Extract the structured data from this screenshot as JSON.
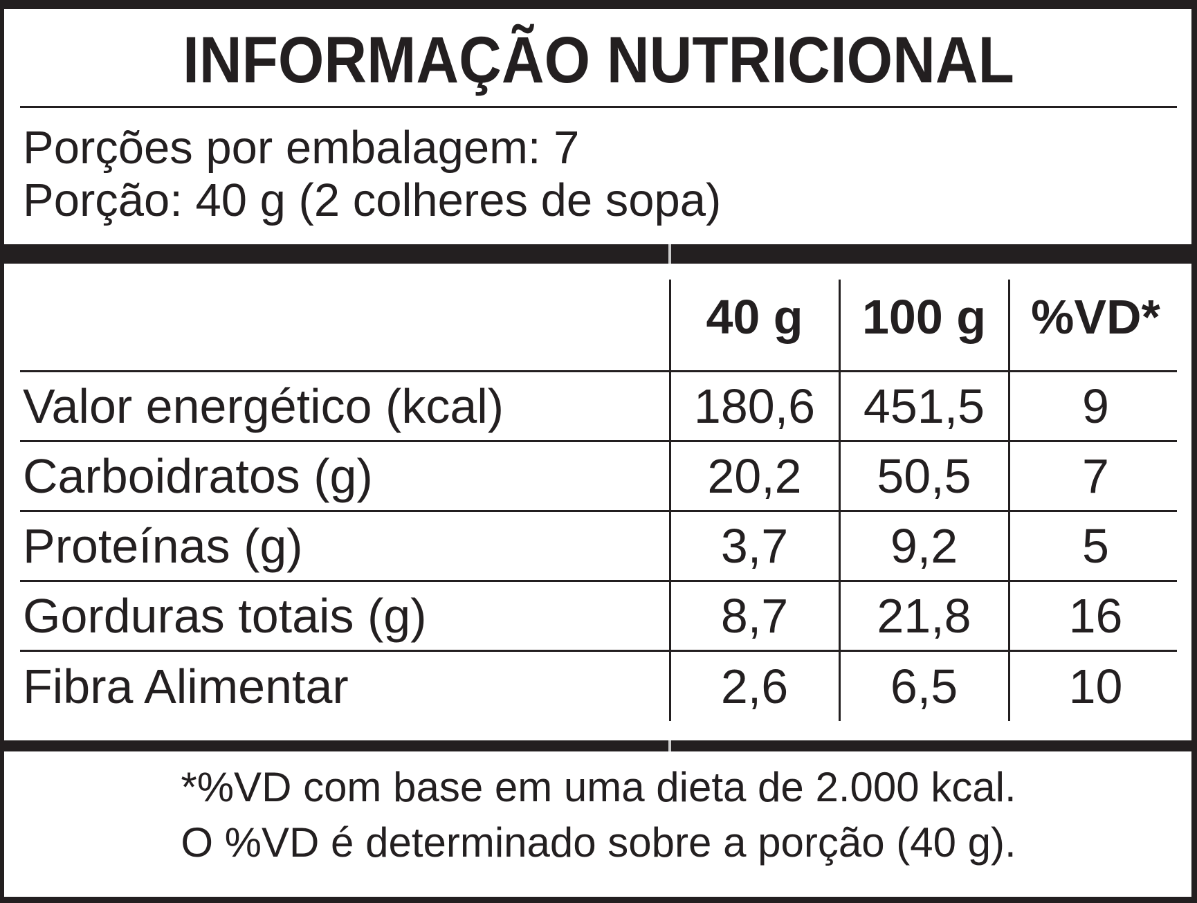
{
  "title": "INFORMAÇÃO NUTRICIONAL",
  "serving_info": {
    "servings_per_package": "Porções por embalagem: 7",
    "serving_size": "Porção: 40 g (2 colheres de sopa)"
  },
  "table": {
    "columns": [
      "40 g",
      "100 g",
      "%VD*"
    ],
    "rows": [
      {
        "label": "Valor energético (kcal)",
        "per_40g": "180,6",
        "per_100g": "451,5",
        "vd_percent": "9"
      },
      {
        "label": "Carboidratos (g)",
        "per_40g": "20,2",
        "per_100g": "50,5",
        "vd_percent": "7"
      },
      {
        "label": "Proteínas (g)",
        "per_40g": "3,7",
        "per_100g": "9,2",
        "vd_percent": "5"
      },
      {
        "label": "Gorduras totais (g)",
        "per_40g": "8,7",
        "per_100g": "21,8",
        "vd_percent": "16"
      },
      {
        "label": "Fibra Alimentar",
        "per_40g": "2,6",
        "per_100g": "6,5",
        "vd_percent": "10"
      }
    ]
  },
  "footnotes": {
    "line1": "*%VD com base em uma dieta de 2.000 kcal.",
    "line2": "O %VD é determinado sobre a porção (40 g)."
  },
  "colors": {
    "ink": "#231f20",
    "background": "#ffffff"
  }
}
